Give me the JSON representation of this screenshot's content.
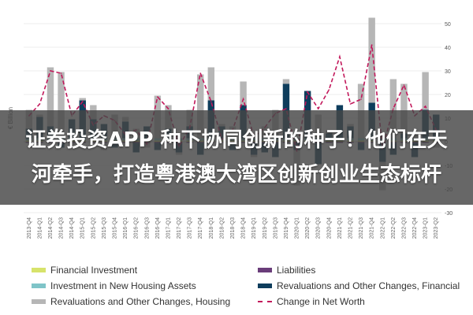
{
  "overlay_text": "证券投资APP 种下协同创新的种子！他们在天河牵手，打造粤港澳大湾区创新创业生态标杆",
  "chart_data": {
    "type": "bar",
    "ylabel": "€ Billion",
    "ylim": [
      -30,
      50
    ],
    "yticks": [
      -30,
      -20,
      -10,
      0,
      10,
      20,
      30,
      40,
      50
    ],
    "categories": [
      "2013-Q4",
      "2014-Q1",
      "2014-Q2",
      "2014-Q3",
      "2014-Q4",
      "2015-Q1",
      "2015-Q2",
      "2015-Q3",
      "2015-Q4",
      "2016-Q1",
      "2016-Q2",
      "2016-Q3",
      "2016-Q4",
      "2017-Q1",
      "2017-Q2",
      "2017-Q3",
      "2017-Q4",
      "2018-Q1",
      "2018-Q2",
      "2018-Q3",
      "2018-Q4",
      "2019-Q1",
      "2019-Q2",
      "2019-Q3",
      "2019-Q4",
      "2020-Q1",
      "2020-Q2",
      "2020-Q3",
      "2020-Q4",
      "2021-Q1",
      "2021-Q2",
      "2021-Q3",
      "2021-Q4",
      "2022-Q1",
      "2022-Q2",
      "2022-Q3",
      "2022-Q4",
      "2023-Q1",
      "2023-Q2"
    ],
    "series": [
      {
        "name": "Financial Investment",
        "color": "#d7e36b",
        "kind": "bar",
        "values": [
          0.5,
          0.5,
          0.5,
          0.5,
          0.5,
          0.5,
          0.5,
          0.5,
          0.5,
          0.5,
          0.5,
          0.5,
          0.5,
          0.5,
          0.5,
          0.5,
          0.5,
          0.5,
          0.5,
          0.5,
          0.5,
          0.5,
          0.5,
          0.5,
          0.5,
          0.5,
          0.5,
          0.5,
          0.5,
          0.5,
          0.5,
          0.5,
          0.5,
          0.5,
          0.5,
          0.5,
          0.5,
          0.5,
          0.5
        ]
      },
      {
        "name": "Liabilities",
        "color": "#6a3d7a",
        "kind": "bar",
        "values": [
          -0.5,
          -0.5,
          -0.5,
          -0.5,
          -0.5,
          -0.5,
          -0.5,
          -0.5,
          -0.5,
          -0.5,
          -0.5,
          -0.5,
          -0.5,
          -0.5,
          -0.5,
          -0.5,
          -0.5,
          -0.5,
          -0.5,
          -0.5,
          -0.5,
          -0.5,
          -0.5,
          -0.5,
          -0.5,
          -0.5,
          -0.5,
          -0.5,
          -0.5,
          -0.5,
          -0.5,
          -0.5,
          -0.5,
          -0.5,
          -0.5,
          -0.5,
          -0.5,
          -0.5,
          -0.5
        ]
      },
      {
        "name": "Investment in New Housing Assets",
        "color": "#7fc4c8",
        "kind": "bar",
        "values": [
          1,
          1,
          1,
          1,
          1,
          1,
          1,
          1,
          1,
          1,
          1,
          1,
          1,
          1,
          1,
          1,
          1,
          1,
          1,
          1,
          1,
          1,
          1,
          1,
          1,
          1,
          1,
          1,
          1,
          1,
          1,
          1,
          1,
          1,
          1,
          1,
          1,
          1,
          1
        ]
      },
      {
        "name": "Revaluations and Other Changes, Financial",
        "color": "#0e3d5c",
        "kind": "bar",
        "values": [
          4,
          9,
          5,
          -2,
          8,
          16,
          8,
          6,
          -2,
          7,
          -4,
          5,
          -3,
          4,
          -4,
          5,
          -5,
          16,
          5,
          -3,
          14,
          -5,
          -4,
          -6,
          23,
          -3,
          20,
          -9,
          2,
          14,
          5,
          -3,
          15,
          -8,
          -5,
          2,
          -6,
          12,
          10
        ]
      },
      {
        "name": "Revaluations and Other Changes, Housing",
        "color": "#b6b6b6",
        "kind": "bar",
        "values": [
          8,
          1,
          25,
          28,
          -1,
          1,
          6,
          -3,
          10,
          2,
          4,
          -2,
          18,
          10,
          -1,
          7,
          27,
          14,
          1,
          5,
          10,
          -1,
          5,
          12,
          2,
          -15,
          -1,
          10,
          1,
          0,
          1,
          23,
          36,
          -12,
          25,
          21,
          2,
          16,
          -2
        ]
      },
      {
        "name": "Change in Net Worth",
        "color": "#c2185b",
        "kind": "line",
        "values": [
          11,
          16,
          30,
          29,
          11,
          17,
          7,
          11,
          9,
          3,
          5,
          -1,
          19,
          14,
          -2,
          6,
          29,
          17,
          1,
          5,
          18,
          2,
          6,
          12,
          14,
          -4,
          21,
          14,
          22,
          36,
          16,
          18,
          41,
          -3,
          14,
          24,
          11,
          15,
          5
        ]
      }
    ],
    "legend": [
      "Financial Investment",
      "Liabilities",
      "Investment in New Housing Assets",
      "Revaluations and Other Changes, Financial",
      "Revaluations and Other Changes, Housing",
      "Change in Net Worth"
    ],
    "legend_position": "bottom",
    "grid": true
  }
}
